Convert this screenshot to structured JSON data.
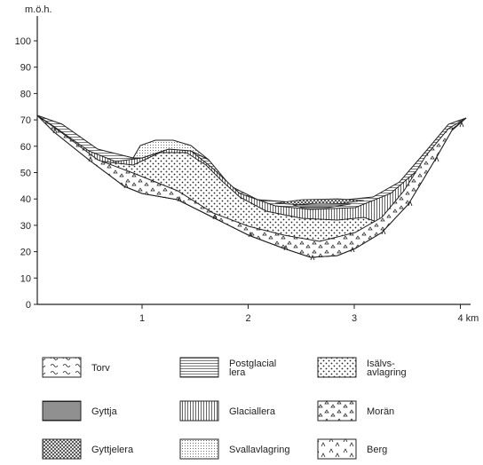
{
  "y_axis": {
    "unit": "m.ö.h.",
    "ticks": [
      "0",
      "10",
      "20",
      "30",
      "40",
      "50",
      "60",
      "70",
      "80",
      "90",
      "100"
    ]
  },
  "x_axis": {
    "ticks": [
      "1",
      "2",
      "3",
      "4 km"
    ]
  },
  "legend": [
    {
      "lines": [
        "Torv"
      ]
    },
    {
      "lines": [
        "Postglacial",
        "lera"
      ]
    },
    {
      "lines": [
        "Isälvs-",
        "avlagring"
      ]
    },
    {
      "lines": [
        "Gyttja"
      ]
    },
    {
      "lines": [
        "Glaciallera"
      ]
    },
    {
      "lines": [
        "Morän"
      ]
    },
    {
      "lines": [
        "Gyttjelera"
      ]
    },
    {
      "lines": [
        "Svallavlagring"
      ]
    },
    {
      "lines": [
        "Berg"
      ]
    }
  ]
}
